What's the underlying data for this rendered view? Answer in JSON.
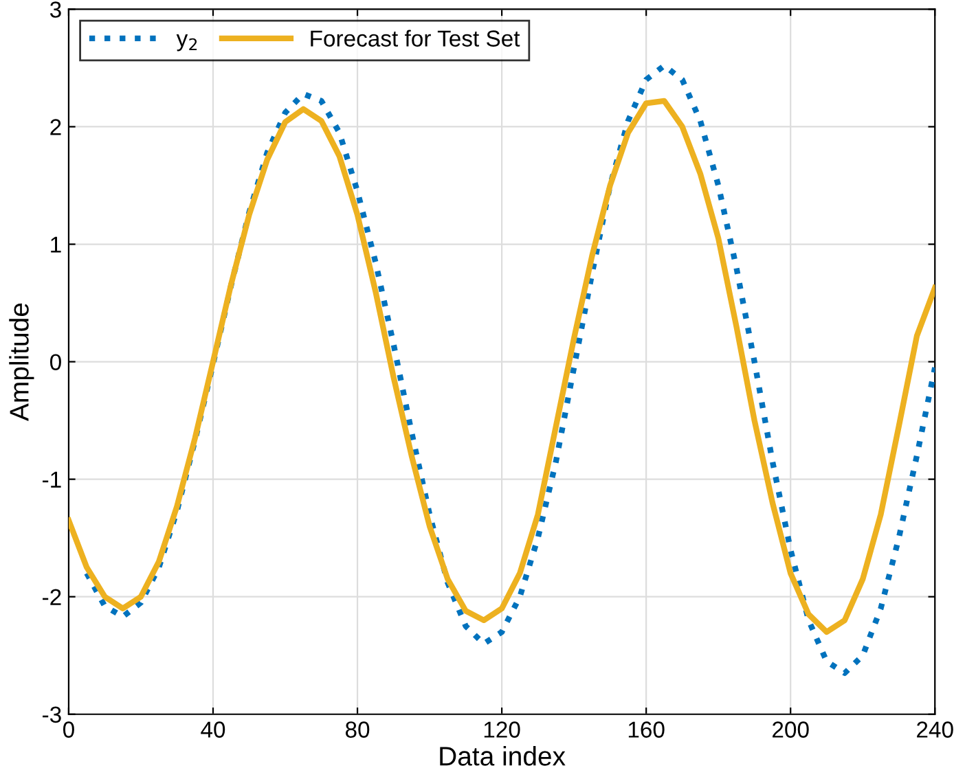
{
  "chart_data": {
    "type": "line",
    "xlabel": "Data index",
    "ylabel": "Amplitude",
    "xlim": [
      0,
      240
    ],
    "xticks": [
      0,
      40,
      80,
      120,
      160,
      200,
      240
    ],
    "ylim": [
      -3,
      3
    ],
    "yticks": [
      -3,
      -2,
      -1,
      0,
      1,
      2,
      3
    ],
    "grid": true,
    "legend": "top left",
    "series": [
      {
        "name": "y$_{2}$",
        "color": "#0072bd",
        "line_style": "dotted",
        "x": [
          5,
          10,
          15,
          20,
          25,
          30,
          35,
          40,
          45,
          50,
          55,
          60,
          65,
          70,
          75,
          80,
          85,
          90,
          95,
          100,
          105,
          110,
          115,
          120,
          125,
          130,
          135,
          140,
          145,
          150,
          155,
          160,
          165,
          170,
          175,
          180,
          185,
          190,
          195,
          200,
          205,
          210,
          215,
          220,
          225,
          230,
          235,
          240
        ],
        "values": [
          -1.8,
          -2.08,
          -2.17,
          -2.05,
          -1.75,
          -1.27,
          -0.67,
          -0.02,
          0.65,
          1.27,
          1.78,
          2.12,
          2.28,
          2.22,
          1.95,
          1.45,
          0.85,
          0.15,
          -0.6,
          -1.3,
          -1.88,
          -2.25,
          -2.4,
          -2.3,
          -2.0,
          -1.5,
          -0.85,
          -0.05,
          0.75,
          1.5,
          2.05,
          2.4,
          2.52,
          2.4,
          2.05,
          1.5,
          0.8,
          0.0,
          -0.85,
          -1.6,
          -2.2,
          -2.55,
          -2.65,
          -2.5,
          -2.1,
          -1.5,
          -0.8,
          -0.05
        ]
      },
      {
        "name": "Forecast for Test Set",
        "color": "#edb120",
        "line_style": "solid",
        "x": [
          0,
          5,
          10,
          15,
          20,
          25,
          30,
          35,
          40,
          45,
          50,
          55,
          60,
          65,
          70,
          75,
          80,
          85,
          90,
          95,
          100,
          105,
          110,
          115,
          120,
          125,
          130,
          135,
          140,
          145,
          150,
          155,
          160,
          165,
          170,
          175,
          180,
          185,
          190,
          195,
          200,
          205,
          210,
          215,
          220,
          225,
          230,
          235,
          240
        ],
        "values": [
          -1.35,
          -1.75,
          -2.0,
          -2.1,
          -2.0,
          -1.7,
          -1.23,
          -0.65,
          0.0,
          0.66,
          1.25,
          1.72,
          2.04,
          2.15,
          2.05,
          1.75,
          1.25,
          0.6,
          -0.13,
          -0.8,
          -1.4,
          -1.85,
          -2.12,
          -2.2,
          -2.1,
          -1.8,
          -1.3,
          -0.55,
          0.2,
          0.9,
          1.5,
          1.95,
          2.2,
          2.22,
          2.0,
          1.6,
          1.05,
          0.3,
          -0.5,
          -1.2,
          -1.8,
          -2.15,
          -2.3,
          -2.2,
          -1.85,
          -1.3,
          -0.55,
          0.22,
          0.63
        ]
      }
    ]
  }
}
